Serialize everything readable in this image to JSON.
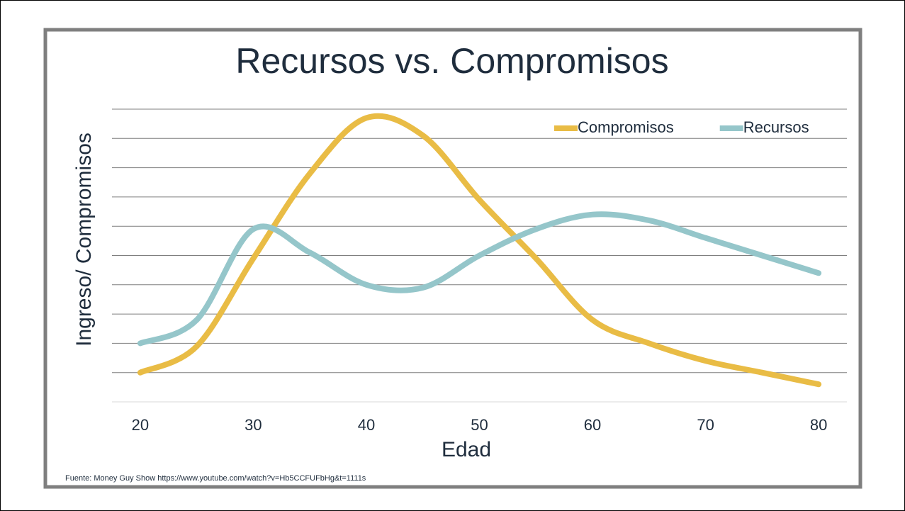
{
  "chart_data": {
    "type": "line",
    "title": "Recursos vs. Compromisos",
    "x_label": "Edad",
    "y_label": "Ingreso/ Compromisos",
    "source": "Fuente: Money Guy Show https://www.youtube.com/watch?v=Hb5CCFUFbHg&t=1111s",
    "x": [
      20,
      25,
      30,
      35,
      40,
      45,
      50,
      55,
      60,
      65,
      70,
      75,
      80
    ],
    "series": [
      {
        "name": "Compromisos",
        "color": "#e9bc45",
        "values": [
          1.0,
          1.9,
          4.9,
          7.8,
          9.7,
          9.1,
          6.9,
          4.9,
          2.8,
          2.0,
          1.4,
          1.0,
          0.6
        ]
      },
      {
        "name": "Recursos",
        "color": "#95c6ca",
        "values": [
          2.0,
          2.8,
          5.9,
          5.1,
          4.0,
          3.9,
          5.0,
          5.9,
          6.4,
          6.2,
          5.6,
          5.0,
          4.4
        ]
      }
    ],
    "xlim": [
      17.5,
      82.5
    ],
    "xticks": [
      20,
      30,
      40,
      50,
      60,
      70,
      80
    ],
    "ylim": [
      0,
      10
    ],
    "yticks": [
      0,
      1,
      2,
      3,
      4,
      5,
      6,
      7,
      8,
      9,
      10
    ],
    "grid": true,
    "legend": "top-right",
    "smooth": true
  }
}
